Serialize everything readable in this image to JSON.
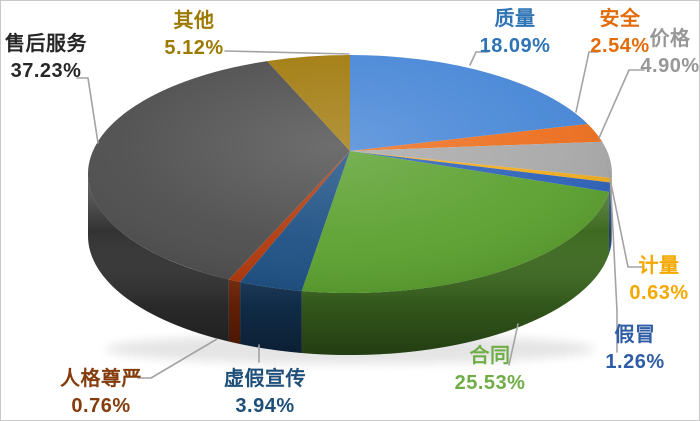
{
  "chart_data": {
    "type": "pie",
    "style": "3d",
    "title": "",
    "legend": "none",
    "background_color": "#FFFFFF",
    "border_color": "#C9C9C9",
    "leader_line_color": "#A3A3A3",
    "start_angle_deg": 0,
    "direction": "clockwise",
    "series": [
      {
        "label": "质量",
        "value": 18.09,
        "percent_text": "18.09%",
        "color": "#4887D7",
        "label_color": "#2E74B5"
      },
      {
        "label": "安全",
        "value": 2.54,
        "percent_text": "2.54%",
        "color": "#EC6F1F",
        "label_color": "#E36C0A"
      },
      {
        "label": "价格",
        "value": 4.9,
        "percent_text": "4.90%",
        "color": "#A9A9A9",
        "label_color": "#979797"
      },
      {
        "label": "计量",
        "value": 0.63,
        "percent_text": "0.63%",
        "color": "#F0AC1E",
        "label_color": "#F5A800"
      },
      {
        "label": "假冒",
        "value": 1.26,
        "percent_text": "1.26%",
        "color": "#2F62B8",
        "label_color": "#2E5DA6"
      },
      {
        "label": "合同",
        "value": 25.53,
        "percent_text": "25.53%",
        "color": "#5CA130",
        "label_color": "#70AD47"
      },
      {
        "label": "虚假宣传",
        "value": 3.94,
        "percent_text": "3.94%",
        "color": "#1E5184",
        "label_color": "#1F4E79"
      },
      {
        "label": "人格尊严",
        "value": 0.76,
        "percent_text": "0.76%",
        "color": "#B13A0C",
        "label_color": "#843C0C"
      },
      {
        "label": "售后服务",
        "value": 37.23,
        "percent_text": "37.23%",
        "color": "#4E4E4E",
        "label_color": "#262626"
      },
      {
        "label": "其他",
        "value": 5.12,
        "percent_text": "5.12%",
        "color": "#A27B0E",
        "label_color": "#9C7A00"
      }
    ]
  }
}
